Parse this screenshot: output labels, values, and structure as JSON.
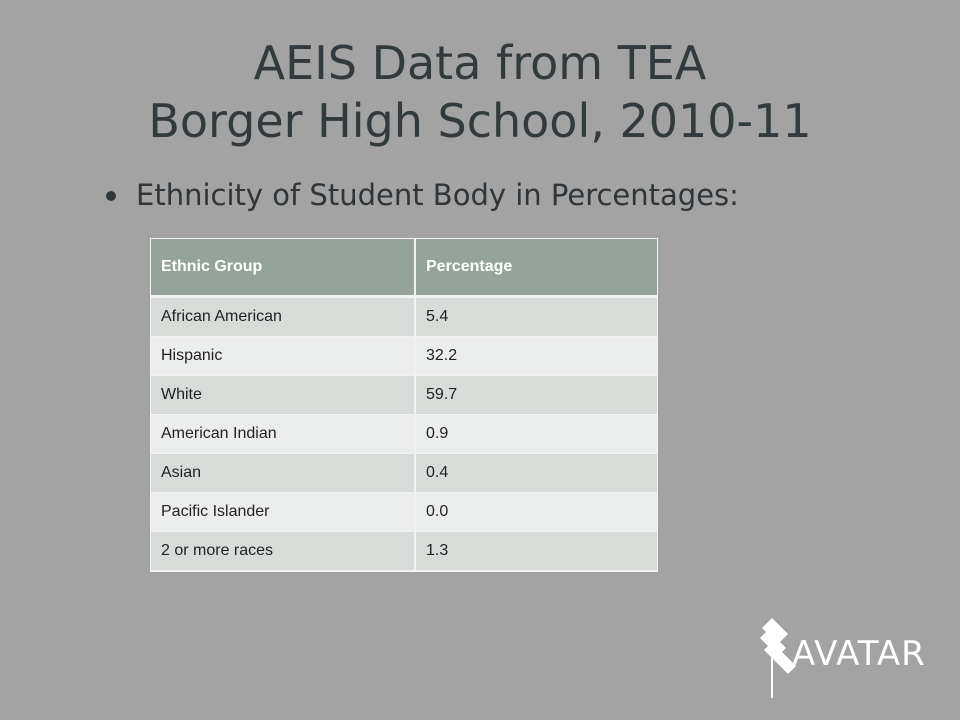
{
  "slide": {
    "title_line1": "AEIS Data from TEA",
    "title_line2": "Borger High School, 2010-11",
    "bullet": "Ethnicity of Student Body in Percentages:"
  },
  "table": {
    "headers": [
      "Ethnic  Group",
      "Percentage"
    ],
    "rows": [
      [
        "African American",
        "5.4"
      ],
      [
        "Hispanic",
        "32.2"
      ],
      [
        "White",
        "59.7"
      ],
      [
        "American Indian",
        "0.9"
      ],
      [
        "Asian",
        "0.4"
      ],
      [
        "Pacific Islander",
        "0.0"
      ],
      [
        "2 or more races",
        "1.3"
      ]
    ]
  },
  "logo": {
    "text": "AVATAR",
    "icon": "avatar-logo-icon"
  },
  "colors": {
    "background": "#a3a3a3",
    "title": "#333a3d",
    "header_bg": "#95a39a",
    "row_odd": "#d7dcd9",
    "row_even": "#ebeeec",
    "logo": "#ffffff"
  }
}
